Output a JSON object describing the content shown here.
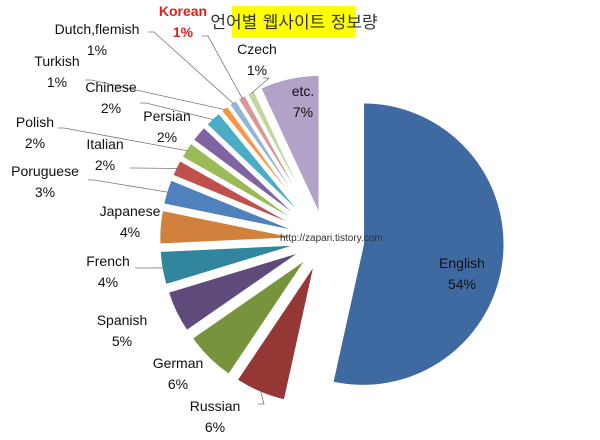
{
  "chart_data": {
    "type": "pie",
    "title": "언어별 웹사이트 정보량",
    "watermark": "http://zapari.tistory.com",
    "exploded": true,
    "start": "12 o'clock, clockwise",
    "slices": [
      {
        "label": "English",
        "value": 54,
        "pct": "54%",
        "color": "#3f6aa1"
      },
      {
        "label": "Russian",
        "value": 6,
        "pct": "6%",
        "color": "#953735"
      },
      {
        "label": "German",
        "value": 6,
        "pct": "6%",
        "color": "#77933c"
      },
      {
        "label": "Spanish",
        "value": 5,
        "pct": "5%",
        "color": "#604a7b"
      },
      {
        "label": "French",
        "value": 4,
        "pct": "4%",
        "color": "#31859c"
      },
      {
        "label": "Japanese",
        "value": 4,
        "pct": "4%",
        "color": "#d1813c"
      },
      {
        "label": "Poruguese",
        "value": 3,
        "pct": "3%",
        "color": "#4f81bd"
      },
      {
        "label": "Italian",
        "value": 2,
        "pct": "2%",
        "color": "#c0504d"
      },
      {
        "label": "Polish",
        "value": 2,
        "pct": "2%",
        "color": "#9bbb59"
      },
      {
        "label": "Persian",
        "value": 2,
        "pct": "2%",
        "color": "#8064a2"
      },
      {
        "label": "Chinese",
        "value": 2,
        "pct": "2%",
        "color": "#4bacc6"
      },
      {
        "label": "Turkish",
        "value": 1,
        "pct": "1%",
        "color": "#f79646"
      },
      {
        "label": "Dutch,flemish",
        "value": 1,
        "pct": "1%",
        "color": "#95b3d7"
      },
      {
        "label": "Korean",
        "value": 1,
        "pct": "1%",
        "color": "#d99694",
        "highlight": "#e0201c"
      },
      {
        "label": "Czech",
        "value": 1,
        "pct": "1%",
        "color": "#c3d69b"
      },
      {
        "label": "etc.",
        "value": 7,
        "pct": "7%",
        "color": "#b3a2c7"
      }
    ],
    "title_background": "#ffff00"
  }
}
